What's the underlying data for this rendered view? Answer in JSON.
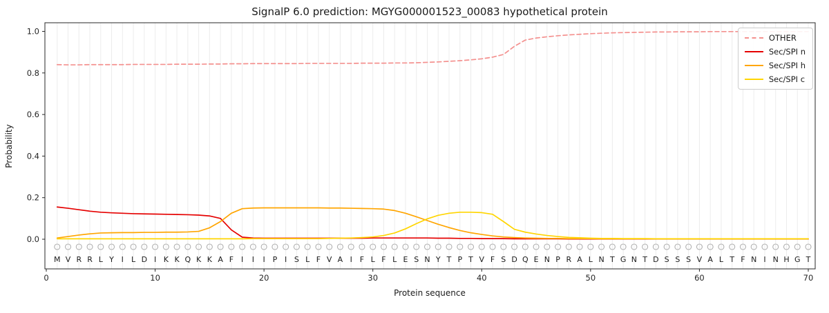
{
  "figure": {
    "title": "SignalP 6.0 prediction: MGYG000001523_00083 hypothetical protein",
    "xlabel": "Protein sequence",
    "ylabel": "Probability"
  },
  "legend": {
    "entries": [
      {
        "label": "OTHER",
        "color": "#f4908e",
        "dash": true
      },
      {
        "label": "Sec/SPI n",
        "color": "#e50000",
        "dash": false
      },
      {
        "label": "Sec/SPI h",
        "color": "#ffa500",
        "dash": false
      },
      {
        "label": "Sec/SPI c",
        "color": "#ffd500",
        "dash": false
      }
    ]
  },
  "chart_data": {
    "type": "line",
    "title": "SignalP 6.0 prediction: MGYG000001523_00083 hypothetical protein",
    "xlabel": "Protein sequence",
    "ylabel": "Probability",
    "xlim": [
      0,
      70
    ],
    "ylim": [
      -0.14,
      1.04
    ],
    "xticks": [
      0,
      10,
      20,
      30,
      40,
      50,
      60,
      70
    ],
    "yticks": [
      0.0,
      0.2,
      0.4,
      0.6,
      0.8,
      1.0
    ],
    "grid": "vertical-per-residue",
    "legend_position": "upper right",
    "marker_symbol": "circle-outline",
    "sequence": "MVRRLYILDIKKQKKAFIIIPISLFVAIFLFLESNYTPTVFSDQENPRALNTGNTDSSSVALTFNINHGT",
    "x": [
      1,
      2,
      3,
      4,
      5,
      6,
      7,
      8,
      9,
      10,
      11,
      12,
      13,
      14,
      15,
      16,
      17,
      18,
      19,
      20,
      21,
      22,
      23,
      24,
      25,
      26,
      27,
      28,
      29,
      30,
      31,
      32,
      33,
      34,
      35,
      36,
      37,
      38,
      39,
      40,
      41,
      42,
      43,
      44,
      45,
      46,
      47,
      48,
      49,
      50,
      51,
      52,
      53,
      54,
      55,
      56,
      57,
      58,
      59,
      60,
      61,
      62,
      63,
      64,
      65,
      66,
      67,
      68,
      69,
      70
    ],
    "series": [
      {
        "name": "OTHER",
        "color": "#f4908e",
        "dash": true,
        "values": [
          0.84,
          0.839,
          0.839,
          0.84,
          0.84,
          0.84,
          0.84,
          0.841,
          0.841,
          0.841,
          0.841,
          0.842,
          0.842,
          0.842,
          0.843,
          0.843,
          0.844,
          0.844,
          0.845,
          0.845,
          0.845,
          0.845,
          0.845,
          0.846,
          0.846,
          0.846,
          0.846,
          0.846,
          0.847,
          0.847,
          0.847,
          0.848,
          0.848,
          0.849,
          0.851,
          0.853,
          0.856,
          0.859,
          0.863,
          0.868,
          0.876,
          0.889,
          0.928,
          0.958,
          0.968,
          0.974,
          0.979,
          0.983,
          0.986,
          0.989,
          0.991,
          0.993,
          0.994,
          0.995,
          0.996,
          0.997,
          0.997,
          0.998,
          0.998,
          0.998,
          0.999,
          0.999,
          0.999,
          0.999,
          0.999,
          0.999,
          0.999,
          0.999,
          0.999,
          0.999
        ]
      },
      {
        "name": "Sec/SPI n",
        "color": "#e50000",
        "dash": false,
        "values": [
          0.155,
          0.149,
          0.142,
          0.135,
          0.13,
          0.127,
          0.125,
          0.123,
          0.122,
          0.121,
          0.12,
          0.119,
          0.118,
          0.116,
          0.112,
          0.1,
          0.045,
          0.01,
          0.006,
          0.005,
          0.005,
          0.005,
          0.005,
          0.005,
          0.005,
          0.005,
          0.005,
          0.005,
          0.005,
          0.006,
          0.006,
          0.006,
          0.006,
          0.006,
          0.006,
          0.005,
          0.005,
          0.004,
          0.004,
          0.003,
          0.003,
          0.003,
          0.002,
          0.002,
          0.002,
          0.002,
          0.002,
          0.001,
          0.001,
          0.001,
          0.001,
          0.001,
          0.001,
          0.001,
          0.001,
          0.001,
          0.001,
          0.001,
          0.001,
          0.001,
          0.001,
          0.001,
          0.001,
          0.001,
          0.001,
          0.001,
          0.001,
          0.001,
          0.001,
          0.001
        ]
      },
      {
        "name": "Sec/SPI h",
        "color": "#ffa500",
        "dash": false,
        "values": [
          0.006,
          0.013,
          0.02,
          0.026,
          0.03,
          0.031,
          0.032,
          0.032,
          0.033,
          0.033,
          0.034,
          0.034,
          0.035,
          0.038,
          0.055,
          0.085,
          0.125,
          0.147,
          0.15,
          0.151,
          0.151,
          0.151,
          0.151,
          0.151,
          0.151,
          0.15,
          0.15,
          0.149,
          0.148,
          0.147,
          0.145,
          0.138,
          0.125,
          0.108,
          0.09,
          0.072,
          0.056,
          0.042,
          0.031,
          0.023,
          0.016,
          0.011,
          0.008,
          0.006,
          0.005,
          0.004,
          0.004,
          0.003,
          0.003,
          0.003,
          0.002,
          0.002,
          0.002,
          0.002,
          0.002,
          0.002,
          0.002,
          0.002,
          0.002,
          0.002,
          0.002,
          0.002,
          0.002,
          0.002,
          0.002,
          0.002,
          0.002,
          0.002,
          0.002,
          0.002
        ]
      },
      {
        "name": "Sec/SPI c",
        "color": "#ffd500",
        "dash": false,
        "values": [
          0.002,
          0.002,
          0.002,
          0.002,
          0.002,
          0.002,
          0.002,
          0.002,
          0.002,
          0.002,
          0.002,
          0.002,
          0.002,
          0.002,
          0.002,
          0.002,
          0.002,
          0.002,
          0.003,
          0.003,
          0.003,
          0.003,
          0.003,
          0.003,
          0.003,
          0.004,
          0.005,
          0.006,
          0.008,
          0.011,
          0.018,
          0.03,
          0.05,
          0.075,
          0.098,
          0.115,
          0.125,
          0.13,
          0.13,
          0.128,
          0.12,
          0.085,
          0.048,
          0.034,
          0.025,
          0.018,
          0.013,
          0.009,
          0.007,
          0.005,
          0.004,
          0.004,
          0.003,
          0.003,
          0.003,
          0.002,
          0.002,
          0.002,
          0.002,
          0.002,
          0.002,
          0.002,
          0.002,
          0.002,
          0.002,
          0.002,
          0.002,
          0.002,
          0.002,
          0.002
        ]
      }
    ]
  }
}
